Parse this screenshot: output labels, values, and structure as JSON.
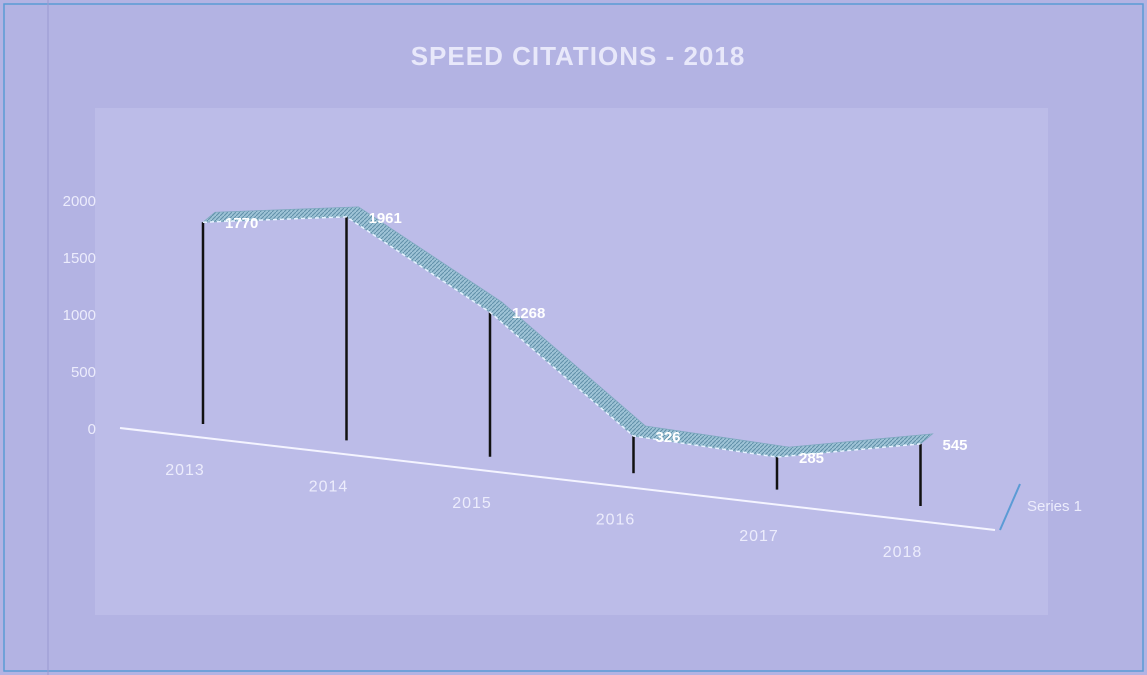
{
  "chart_data": {
    "type": "line",
    "title": "SPEED CITATIONS - 2018",
    "categories": [
      "2013",
      "2014",
      "2015",
      "2016",
      "2017",
      "2018"
    ],
    "series": [
      {
        "name": "Series 1",
        "color": "#5b9bd5",
        "values": [
          1770,
          1961,
          1268,
          326,
          285,
          545
        ]
      }
    ],
    "ylim": [
      0,
      2000
    ],
    "yticks": [
      0,
      500,
      1000,
      1500,
      2000
    ],
    "data_labels": true,
    "legend": "right"
  }
}
